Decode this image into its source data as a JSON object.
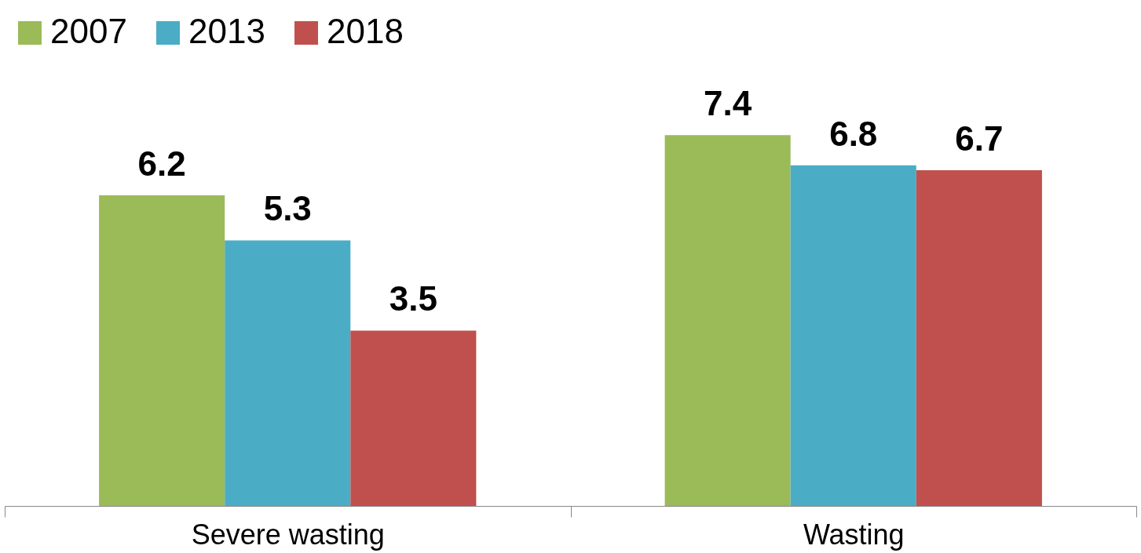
{
  "chart_data": {
    "type": "bar",
    "categories": [
      "Severe wasting",
      "Wasting"
    ],
    "series": [
      {
        "name": "2007",
        "color": "#9bbb59",
        "values": [
          6.2,
          7.4
        ]
      },
      {
        "name": "2013",
        "color": "#4bacc6",
        "values": [
          5.3,
          6.8
        ]
      },
      {
        "name": "2018",
        "color": "#c0504d",
        "values": [
          3.5,
          6.7
        ]
      }
    ],
    "data_labels": true,
    "legend": "top",
    "tick_labels": "x"
  }
}
